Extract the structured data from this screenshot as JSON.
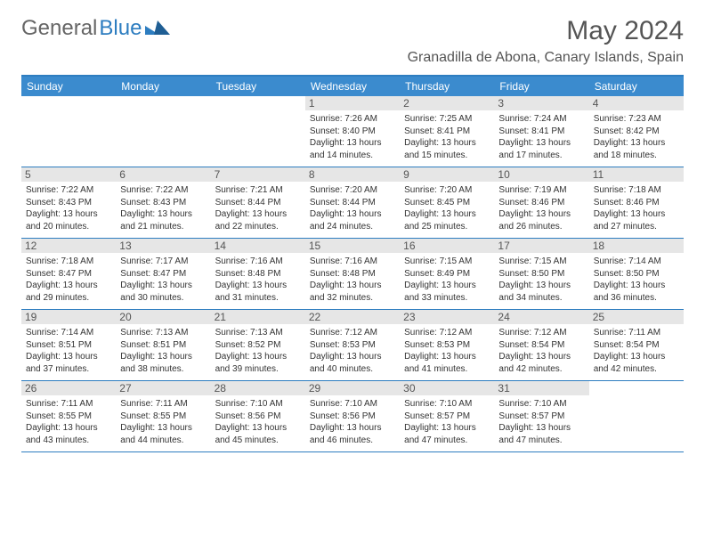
{
  "logo": {
    "part1": "General",
    "part2": "Blue"
  },
  "title": "May 2024",
  "location": "Granadilla de Abona, Canary Islands, Spain",
  "dayNames": [
    "Sunday",
    "Monday",
    "Tuesday",
    "Wednesday",
    "Thursday",
    "Friday",
    "Saturday"
  ],
  "colors": {
    "header_bg": "#3b8bce",
    "header_border": "#2d7dc0",
    "date_bg": "#e6e6e6",
    "text": "#333333",
    "title_text": "#555555"
  },
  "weeks": [
    [
      null,
      null,
      null,
      {
        "d": "1",
        "sr": "7:26 AM",
        "ss": "8:40 PM",
        "dl": "13 hours and 14 minutes."
      },
      {
        "d": "2",
        "sr": "7:25 AM",
        "ss": "8:41 PM",
        "dl": "13 hours and 15 minutes."
      },
      {
        "d": "3",
        "sr": "7:24 AM",
        "ss": "8:41 PM",
        "dl": "13 hours and 17 minutes."
      },
      {
        "d": "4",
        "sr": "7:23 AM",
        "ss": "8:42 PM",
        "dl": "13 hours and 18 minutes."
      }
    ],
    [
      {
        "d": "5",
        "sr": "7:22 AM",
        "ss": "8:43 PM",
        "dl": "13 hours and 20 minutes."
      },
      {
        "d": "6",
        "sr": "7:22 AM",
        "ss": "8:43 PM",
        "dl": "13 hours and 21 minutes."
      },
      {
        "d": "7",
        "sr": "7:21 AM",
        "ss": "8:44 PM",
        "dl": "13 hours and 22 minutes."
      },
      {
        "d": "8",
        "sr": "7:20 AM",
        "ss": "8:44 PM",
        "dl": "13 hours and 24 minutes."
      },
      {
        "d": "9",
        "sr": "7:20 AM",
        "ss": "8:45 PM",
        "dl": "13 hours and 25 minutes."
      },
      {
        "d": "10",
        "sr": "7:19 AM",
        "ss": "8:46 PM",
        "dl": "13 hours and 26 minutes."
      },
      {
        "d": "11",
        "sr": "7:18 AM",
        "ss": "8:46 PM",
        "dl": "13 hours and 27 minutes."
      }
    ],
    [
      {
        "d": "12",
        "sr": "7:18 AM",
        "ss": "8:47 PM",
        "dl": "13 hours and 29 minutes."
      },
      {
        "d": "13",
        "sr": "7:17 AM",
        "ss": "8:47 PM",
        "dl": "13 hours and 30 minutes."
      },
      {
        "d": "14",
        "sr": "7:16 AM",
        "ss": "8:48 PM",
        "dl": "13 hours and 31 minutes."
      },
      {
        "d": "15",
        "sr": "7:16 AM",
        "ss": "8:48 PM",
        "dl": "13 hours and 32 minutes."
      },
      {
        "d": "16",
        "sr": "7:15 AM",
        "ss": "8:49 PM",
        "dl": "13 hours and 33 minutes."
      },
      {
        "d": "17",
        "sr": "7:15 AM",
        "ss": "8:50 PM",
        "dl": "13 hours and 34 minutes."
      },
      {
        "d": "18",
        "sr": "7:14 AM",
        "ss": "8:50 PM",
        "dl": "13 hours and 36 minutes."
      }
    ],
    [
      {
        "d": "19",
        "sr": "7:14 AM",
        "ss": "8:51 PM",
        "dl": "13 hours and 37 minutes."
      },
      {
        "d": "20",
        "sr": "7:13 AM",
        "ss": "8:51 PM",
        "dl": "13 hours and 38 minutes."
      },
      {
        "d": "21",
        "sr": "7:13 AM",
        "ss": "8:52 PM",
        "dl": "13 hours and 39 minutes."
      },
      {
        "d": "22",
        "sr": "7:12 AM",
        "ss": "8:53 PM",
        "dl": "13 hours and 40 minutes."
      },
      {
        "d": "23",
        "sr": "7:12 AM",
        "ss": "8:53 PM",
        "dl": "13 hours and 41 minutes."
      },
      {
        "d": "24",
        "sr": "7:12 AM",
        "ss": "8:54 PM",
        "dl": "13 hours and 42 minutes."
      },
      {
        "d": "25",
        "sr": "7:11 AM",
        "ss": "8:54 PM",
        "dl": "13 hours and 42 minutes."
      }
    ],
    [
      {
        "d": "26",
        "sr": "7:11 AM",
        "ss": "8:55 PM",
        "dl": "13 hours and 43 minutes."
      },
      {
        "d": "27",
        "sr": "7:11 AM",
        "ss": "8:55 PM",
        "dl": "13 hours and 44 minutes."
      },
      {
        "d": "28",
        "sr": "7:10 AM",
        "ss": "8:56 PM",
        "dl": "13 hours and 45 minutes."
      },
      {
        "d": "29",
        "sr": "7:10 AM",
        "ss": "8:56 PM",
        "dl": "13 hours and 46 minutes."
      },
      {
        "d": "30",
        "sr": "7:10 AM",
        "ss": "8:57 PM",
        "dl": "13 hours and 47 minutes."
      },
      {
        "d": "31",
        "sr": "7:10 AM",
        "ss": "8:57 PM",
        "dl": "13 hours and 47 minutes."
      },
      null
    ]
  ]
}
